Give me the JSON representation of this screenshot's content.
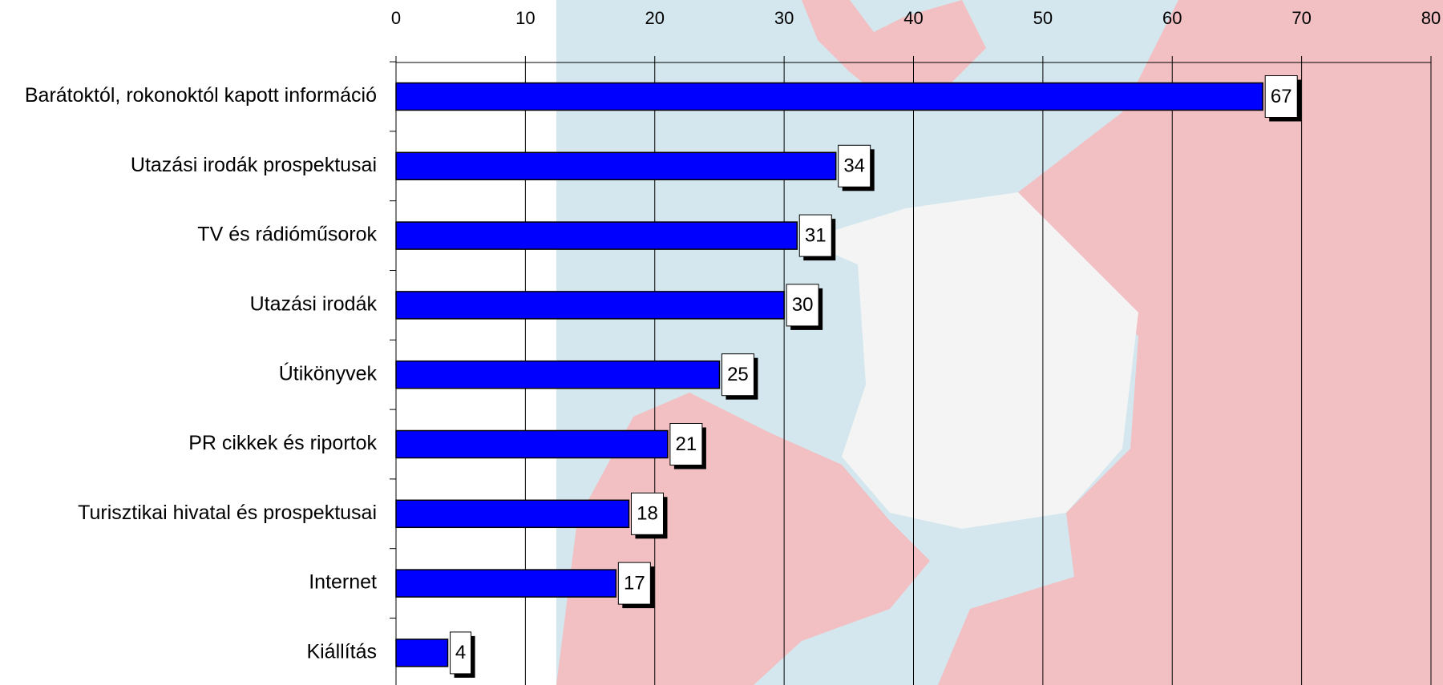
{
  "chart_data": {
    "type": "barh",
    "categories": [
      "Barátoktól, rokonoktól kapott információ",
      "Utazási irodák prospektusai",
      "TV és rádióműsorok",
      "Utazási irodák",
      "Útikönyvek",
      "PR cikkek és riportok",
      "Turisztikai hivatal és prospektusai",
      "Internet",
      "Kiállítás"
    ],
    "values": [
      67,
      34,
      31,
      30,
      25,
      21,
      18,
      17,
      4
    ],
    "color": "#0000ff",
    "xlim": [
      0,
      80
    ],
    "xticks": [
      0,
      10,
      20,
      30,
      40,
      50,
      60,
      70,
      80
    ],
    "grid": true
  }
}
